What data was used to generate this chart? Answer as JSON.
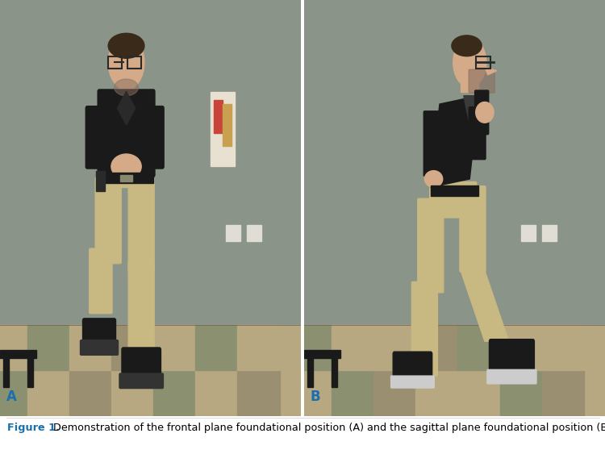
{
  "fig_width": 7.5,
  "fig_height": 5.58,
  "dpi": 100,
  "background_color": "#ffffff",
  "label_A": "A",
  "label_B": "B",
  "caption_bold": "Figure 1.",
  "caption_rest": " Demonstration of the frontal plane foundational position (A) and the sagittal plane foundational position (B).",
  "caption_color_bold": "#1a6faf",
  "caption_color_rest": "#000000",
  "caption_fontsize": 9.2,
  "label_fontsize": 12,
  "label_color": "#1a6faf",
  "label_fontweight": "bold",
  "wall_color": "#8a9488",
  "floor_color_tan": "#b8a882",
  "floor_color_green": "#8a9070",
  "floor_color_dark": "#9a8f70",
  "shirt_color": "#1a1a1a",
  "pants_color": "#c8b882",
  "shoe_color": "#1a1a1a",
  "skin_color": "#d4aa88",
  "bench_color": "#2a2a2a",
  "outlet_color": "#e0ddd5",
  "art_color1": "#c8453a",
  "art_color2": "#c8a050",
  "hair_color": "#3a2a1a"
}
